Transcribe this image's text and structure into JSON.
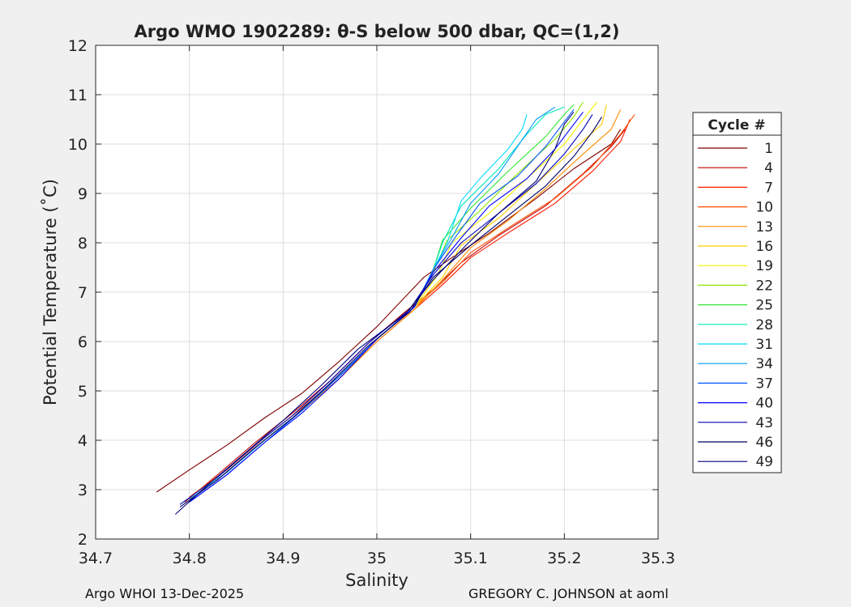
{
  "chart_data": {
    "type": "line",
    "title": "Argo WMO 1902289: θ-S below 500 dbar,  QC=(1,2)",
    "xlabel": "Salinity",
    "ylabel": "Potential Temperature (˚C)",
    "xlim": [
      34.7,
      35.3
    ],
    "ylim": [
      2,
      12
    ],
    "xticks": [
      34.7,
      34.8,
      34.9,
      35,
      35.1,
      35.2,
      35.3
    ],
    "xtick_labels": [
      "34.7",
      "34.8",
      "34.9",
      "35",
      "35.1",
      "35.2",
      "35.3"
    ],
    "yticks": [
      2,
      3,
      4,
      5,
      6,
      7,
      8,
      9,
      10,
      11,
      12
    ],
    "ytick_labels": [
      "2",
      "3",
      "4",
      "5",
      "6",
      "7",
      "8",
      "9",
      "10",
      "11",
      "12"
    ],
    "grid": true,
    "legend_title": "Cycle #",
    "legend_position": "right",
    "series": [
      {
        "name": "1",
        "color": "#800000",
        "points": [
          [
            34.765,
            2.95
          ],
          [
            34.8,
            3.4
          ],
          [
            34.84,
            3.9
          ],
          [
            34.88,
            4.45
          ],
          [
            34.92,
            4.95
          ],
          [
            34.96,
            5.6
          ],
          [
            35.0,
            6.3
          ],
          [
            35.02,
            6.7
          ],
          [
            35.05,
            7.3
          ],
          [
            35.08,
            7.7
          ],
          [
            35.12,
            8.2
          ],
          [
            35.17,
            8.9
          ],
          [
            35.21,
            9.5
          ],
          [
            35.25,
            10.0
          ],
          [
            35.26,
            10.3
          ]
        ]
      },
      {
        "name": "4",
        "color": "#c00000",
        "points": [
          [
            34.795,
            2.75
          ],
          [
            34.83,
            3.3
          ],
          [
            34.87,
            3.95
          ],
          [
            34.91,
            4.55
          ],
          [
            34.95,
            5.2
          ],
          [
            34.99,
            5.95
          ],
          [
            35.03,
            6.6
          ],
          [
            35.06,
            7.05
          ],
          [
            35.09,
            7.6
          ],
          [
            35.13,
            8.15
          ],
          [
            35.18,
            8.75
          ],
          [
            35.22,
            9.4
          ],
          [
            35.25,
            9.95
          ],
          [
            35.265,
            10.3
          ]
        ]
      },
      {
        "name": "7",
        "color": "#ff1a00",
        "points": [
          [
            34.8,
            2.8
          ],
          [
            34.84,
            3.35
          ],
          [
            34.88,
            4.0
          ],
          [
            34.92,
            4.6
          ],
          [
            34.96,
            5.25
          ],
          [
            35.0,
            6.0
          ],
          [
            35.04,
            6.65
          ],
          [
            35.07,
            7.15
          ],
          [
            35.1,
            7.7
          ],
          [
            35.14,
            8.2
          ],
          [
            35.19,
            8.8
          ],
          [
            35.23,
            9.45
          ],
          [
            35.26,
            10.05
          ],
          [
            35.27,
            10.5
          ]
        ]
      },
      {
        "name": "10",
        "color": "#ff4d00",
        "points": [
          [
            34.8,
            2.85
          ],
          [
            34.84,
            3.4
          ],
          [
            34.88,
            4.05
          ],
          [
            34.92,
            4.65
          ],
          [
            34.96,
            5.3
          ],
          [
            35.0,
            6.05
          ],
          [
            35.04,
            6.7
          ],
          [
            35.07,
            7.2
          ],
          [
            35.1,
            7.8
          ],
          [
            35.14,
            8.3
          ],
          [
            35.19,
            8.9
          ],
          [
            35.23,
            9.55
          ],
          [
            35.26,
            10.2
          ],
          [
            35.275,
            10.6
          ]
        ]
      },
      {
        "name": "13",
        "color": "#ff8c00",
        "points": [
          [
            34.8,
            2.8
          ],
          [
            34.84,
            3.35
          ],
          [
            34.88,
            4.0
          ],
          [
            34.92,
            4.6
          ],
          [
            34.96,
            5.25
          ],
          [
            35.0,
            6.0
          ],
          [
            35.04,
            6.65
          ],
          [
            35.07,
            7.25
          ],
          [
            35.1,
            7.9
          ],
          [
            35.14,
            8.45
          ],
          [
            35.18,
            9.1
          ],
          [
            35.22,
            9.8
          ],
          [
            35.25,
            10.3
          ],
          [
            35.26,
            10.7
          ]
        ]
      },
      {
        "name": "16",
        "color": "#ffcc00",
        "points": [
          [
            34.8,
            2.8
          ],
          [
            34.84,
            3.35
          ],
          [
            34.88,
            4.0
          ],
          [
            34.92,
            4.6
          ],
          [
            34.96,
            5.3
          ],
          [
            35.0,
            6.05
          ],
          [
            35.04,
            6.7
          ],
          [
            35.07,
            7.3
          ],
          [
            35.09,
            7.95
          ],
          [
            35.13,
            8.5
          ],
          [
            35.17,
            9.2
          ],
          [
            35.21,
            9.9
          ],
          [
            35.24,
            10.4
          ],
          [
            35.245,
            10.8
          ]
        ]
      },
      {
        "name": "19",
        "color": "#f2f200",
        "points": [
          [
            34.8,
            2.8
          ],
          [
            34.84,
            3.35
          ],
          [
            34.88,
            4.0
          ],
          [
            34.92,
            4.6
          ],
          [
            34.96,
            5.3
          ],
          [
            35.0,
            6.05
          ],
          [
            35.04,
            6.7
          ],
          [
            35.065,
            7.35
          ],
          [
            35.08,
            8.0
          ],
          [
            35.12,
            8.6
          ],
          [
            35.16,
            9.3
          ],
          [
            35.2,
            10.0
          ],
          [
            35.22,
            10.5
          ],
          [
            35.235,
            10.85
          ]
        ]
      },
      {
        "name": "22",
        "color": "#8de600",
        "points": [
          [
            34.8,
            2.8
          ],
          [
            34.84,
            3.35
          ],
          [
            34.88,
            4.0
          ],
          [
            34.92,
            4.6
          ],
          [
            34.96,
            5.3
          ],
          [
            35.0,
            6.05
          ],
          [
            35.04,
            6.7
          ],
          [
            35.06,
            7.4
          ],
          [
            35.075,
            8.05
          ],
          [
            35.11,
            8.65
          ],
          [
            35.15,
            9.4
          ],
          [
            35.19,
            10.1
          ],
          [
            35.21,
            10.55
          ],
          [
            35.22,
            10.85
          ]
        ]
      },
      {
        "name": "25",
        "color": "#33e633",
        "points": [
          [
            34.8,
            2.8
          ],
          [
            34.84,
            3.35
          ],
          [
            34.88,
            4.0
          ],
          [
            34.92,
            4.6
          ],
          [
            34.96,
            5.3
          ],
          [
            35.0,
            6.05
          ],
          [
            35.04,
            6.7
          ],
          [
            35.06,
            7.45
          ],
          [
            35.07,
            8.05
          ],
          [
            35.1,
            8.7
          ],
          [
            35.14,
            9.45
          ],
          [
            35.18,
            10.15
          ],
          [
            35.2,
            10.6
          ],
          [
            35.21,
            10.8
          ]
        ]
      },
      {
        "name": "28",
        "color": "#00e6b8",
        "points": [
          [
            34.8,
            2.8
          ],
          [
            34.84,
            3.35
          ],
          [
            34.88,
            4.0
          ],
          [
            34.92,
            4.6
          ],
          [
            34.96,
            5.3
          ],
          [
            35.0,
            6.05
          ],
          [
            35.04,
            6.7
          ],
          [
            35.06,
            7.45
          ],
          [
            35.07,
            8.0
          ],
          [
            35.09,
            8.75
          ],
          [
            35.13,
            9.5
          ],
          [
            35.16,
            10.2
          ],
          [
            35.18,
            10.6
          ],
          [
            35.2,
            10.75
          ]
        ]
      },
      {
        "name": "31",
        "color": "#00d9ff",
        "points": [
          [
            34.8,
            2.8
          ],
          [
            34.84,
            3.35
          ],
          [
            34.88,
            4.0
          ],
          [
            34.92,
            4.6
          ],
          [
            34.96,
            5.3
          ],
          [
            35.0,
            6.05
          ],
          [
            35.04,
            6.7
          ],
          [
            35.06,
            7.45
          ],
          [
            35.075,
            8.0
          ],
          [
            35.09,
            8.85
          ],
          [
            35.11,
            9.3
          ],
          [
            35.14,
            9.9
          ],
          [
            35.155,
            10.3
          ],
          [
            35.16,
            10.6
          ]
        ]
      },
      {
        "name": "34",
        "color": "#0099ff",
        "points": [
          [
            34.8,
            2.8
          ],
          [
            34.84,
            3.35
          ],
          [
            34.88,
            4.0
          ],
          [
            34.92,
            4.6
          ],
          [
            34.96,
            5.3
          ],
          [
            35.0,
            6.05
          ],
          [
            35.04,
            6.7
          ],
          [
            35.06,
            7.45
          ],
          [
            35.08,
            8.1
          ],
          [
            35.1,
            8.8
          ],
          [
            35.13,
            9.4
          ],
          [
            35.15,
            9.95
          ],
          [
            35.17,
            10.5
          ],
          [
            35.19,
            10.75
          ]
        ]
      },
      {
        "name": "37",
        "color": "#0055ff",
        "points": [
          [
            34.8,
            2.75
          ],
          [
            34.84,
            3.3
          ],
          [
            34.88,
            3.95
          ],
          [
            34.92,
            4.6
          ],
          [
            34.96,
            5.3
          ],
          [
            35.0,
            6.05
          ],
          [
            35.04,
            6.7
          ],
          [
            35.06,
            7.45
          ],
          [
            35.085,
            8.15
          ],
          [
            35.11,
            8.8
          ],
          [
            35.15,
            9.35
          ],
          [
            35.18,
            9.95
          ],
          [
            35.2,
            10.45
          ],
          [
            35.21,
            10.7
          ]
        ]
      },
      {
        "name": "40",
        "color": "#0000ff",
        "points": [
          [
            34.8,
            2.75
          ],
          [
            34.84,
            3.3
          ],
          [
            34.88,
            3.95
          ],
          [
            34.92,
            4.55
          ],
          [
            34.96,
            5.25
          ],
          [
            35.0,
            6.05
          ],
          [
            35.04,
            6.7
          ],
          [
            35.06,
            7.4
          ],
          [
            35.09,
            8.1
          ],
          [
            35.12,
            8.75
          ],
          [
            35.16,
            9.3
          ],
          [
            35.19,
            9.9
          ],
          [
            35.21,
            10.4
          ],
          [
            35.22,
            10.65
          ]
        ]
      },
      {
        "name": "43",
        "color": "#0000b3",
        "points": [
          [
            34.79,
            2.7
          ],
          [
            34.83,
            3.25
          ],
          [
            34.87,
            3.9
          ],
          [
            34.91,
            4.5
          ],
          [
            34.95,
            5.2
          ],
          [
            34.99,
            5.95
          ],
          [
            35.035,
            6.65
          ],
          [
            35.06,
            7.35
          ],
          [
            35.09,
            8.0
          ],
          [
            35.13,
            8.6
          ],
          [
            35.17,
            9.2
          ],
          [
            35.2,
            9.8
          ],
          [
            35.22,
            10.3
          ],
          [
            35.23,
            10.6
          ]
        ]
      },
      {
        "name": "46",
        "color": "#000066",
        "points": [
          [
            34.79,
            2.65
          ],
          [
            34.83,
            3.2
          ],
          [
            34.87,
            3.85
          ],
          [
            34.91,
            4.45
          ],
          [
            34.95,
            5.15
          ],
          [
            34.99,
            5.9
          ],
          [
            35.035,
            6.6
          ],
          [
            35.06,
            7.3
          ],
          [
            35.1,
            7.95
          ],
          [
            35.14,
            8.55
          ],
          [
            35.18,
            9.15
          ],
          [
            35.21,
            9.75
          ],
          [
            35.23,
            10.25
          ],
          [
            35.24,
            10.55
          ]
        ]
      },
      {
        "name": "49",
        "color": "#00007a",
        "points": [
          [
            34.785,
            2.5
          ],
          [
            34.82,
            3.1
          ],
          [
            34.86,
            3.75
          ],
          [
            34.9,
            4.4
          ],
          [
            34.94,
            5.1
          ],
          [
            34.98,
            5.85
          ],
          [
            35.03,
            6.55
          ],
          [
            35.06,
            7.25
          ],
          [
            35.095,
            7.95
          ],
          [
            35.13,
            8.6
          ],
          [
            35.17,
            9.25
          ],
          [
            35.19,
            9.9
          ],
          [
            35.2,
            10.4
          ],
          [
            35.21,
            10.65
          ]
        ]
      }
    ]
  },
  "footer": {
    "left": "Argo WHOI 13-Dec-2025",
    "right": "GREGORY C. JOHNSON at aoml"
  }
}
